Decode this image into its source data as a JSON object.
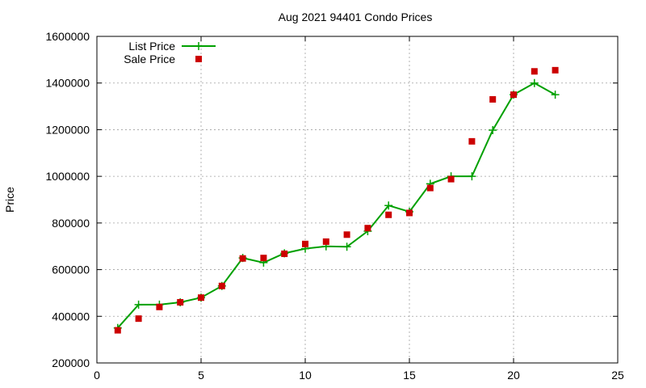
{
  "chart_data": {
    "type": "line",
    "title": "Aug 2021 94401 Condo Prices",
    "xlabel": "",
    "ylabel": "Price",
    "xlim": [
      0,
      25
    ],
    "ylim": [
      200000,
      1600000
    ],
    "xticks": [
      0,
      5,
      10,
      15,
      20,
      25
    ],
    "yticks": [
      200000,
      400000,
      600000,
      800000,
      1000000,
      1200000,
      1400000,
      1600000
    ],
    "grid": true,
    "legend_position": "top-left",
    "series": [
      {
        "name": "List Price",
        "style": "line+cross",
        "color": "#00a000",
        "points": [
          [
            1,
            350000
          ],
          [
            2,
            450000
          ],
          [
            3,
            450000
          ],
          [
            4,
            460000
          ],
          [
            5,
            480000
          ],
          [
            6,
            530000
          ],
          [
            7,
            650000
          ],
          [
            8,
            630000
          ],
          [
            9,
            670000
          ],
          [
            10,
            690000
          ],
          [
            11,
            700000
          ],
          [
            12,
            698000
          ],
          [
            13,
            765000
          ],
          [
            14,
            875000
          ],
          [
            15,
            848000
          ],
          [
            16,
            968000
          ],
          [
            17,
            1000000
          ],
          [
            18,
            1000000
          ],
          [
            19,
            1198000
          ],
          [
            20,
            1350000
          ],
          [
            21,
            1400000
          ],
          [
            22,
            1350000
          ]
        ]
      },
      {
        "name": "Sale Price",
        "style": "square",
        "color": "#cc0000",
        "points": [
          [
            1,
            340000
          ],
          [
            2,
            390000
          ],
          [
            3,
            440000
          ],
          [
            4,
            460000
          ],
          [
            5,
            480000
          ],
          [
            6,
            530000
          ],
          [
            7,
            648000
          ],
          [
            8,
            650000
          ],
          [
            9,
            668000
          ],
          [
            10,
            710000
          ],
          [
            11,
            720000
          ],
          [
            12,
            750000
          ],
          [
            13,
            778000
          ],
          [
            14,
            835000
          ],
          [
            15,
            843000
          ],
          [
            16,
            950000
          ],
          [
            17,
            988000
          ],
          [
            18,
            1150000
          ],
          [
            19,
            1330000
          ],
          [
            20,
            1350000
          ],
          [
            21,
            1450000
          ],
          [
            22,
            1455000
          ]
        ]
      }
    ]
  }
}
